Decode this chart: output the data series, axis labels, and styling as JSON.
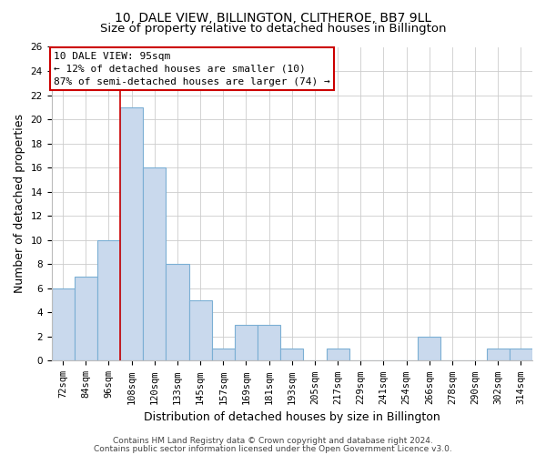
{
  "title": "10, DALE VIEW, BILLINGTON, CLITHEROE, BB7 9LL",
  "subtitle": "Size of property relative to detached houses in Billington",
  "xlabel": "Distribution of detached houses by size in Billington",
  "ylabel": "Number of detached properties",
  "bar_labels": [
    "72sqm",
    "84sqm",
    "96sqm",
    "108sqm",
    "120sqm",
    "133sqm",
    "145sqm",
    "157sqm",
    "169sqm",
    "181sqm",
    "193sqm",
    "205sqm",
    "217sqm",
    "229sqm",
    "241sqm",
    "254sqm",
    "266sqm",
    "278sqm",
    "290sqm",
    "302sqm",
    "314sqm"
  ],
  "bar_values": [
    6,
    7,
    10,
    21,
    16,
    8,
    5,
    1,
    3,
    3,
    1,
    0,
    1,
    0,
    0,
    0,
    2,
    0,
    0,
    1,
    1
  ],
  "bar_color": "#c9d9ed",
  "bar_edge_color": "#7bafd4",
  "vline_index": 2.5,
  "vline_color": "#cc0000",
  "ylim": [
    0,
    26
  ],
  "yticks": [
    0,
    2,
    4,
    6,
    8,
    10,
    12,
    14,
    16,
    18,
    20,
    22,
    24,
    26
  ],
  "annotation_title": "10 DALE VIEW: 95sqm",
  "annotation_line1": "← 12% of detached houses are smaller (10)",
  "annotation_line2": "87% of semi-detached houses are larger (74) →",
  "footer_line1": "Contains HM Land Registry data © Crown copyright and database right 2024.",
  "footer_line2": "Contains public sector information licensed under the Open Government Licence v3.0.",
  "background_color": "#ffffff",
  "grid_color": "#cccccc",
  "title_fontsize": 10,
  "subtitle_fontsize": 9.5,
  "axis_label_fontsize": 9,
  "tick_fontsize": 7.5,
  "annotation_fontsize": 8,
  "footer_fontsize": 6.5
}
